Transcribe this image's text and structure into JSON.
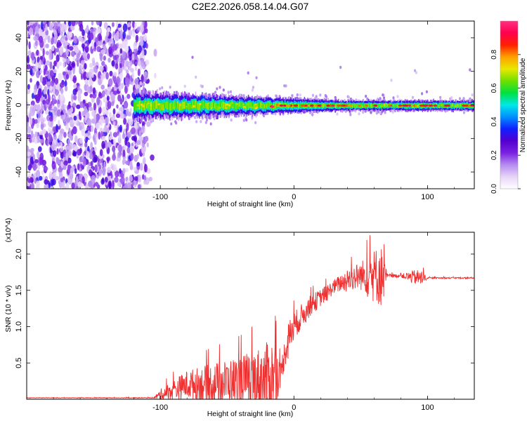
{
  "figure_title": "C2E2.2026.058.14.04.G07",
  "chart_data": [
    {
      "type": "heatmap",
      "title": "C2E2.2026.058.14.04.G07",
      "xlabel": "Height of straight line (km)",
      "ylabel": "Frequency (Hz)",
      "xlim": [
        -200,
        135
      ],
      "ylim": [
        -50,
        50
      ],
      "xticks": [
        -100,
        0,
        100
      ],
      "yticks": [
        -40,
        -20,
        0,
        20,
        40
      ],
      "xtick_labels": [
        "-100",
        "0",
        "100"
      ],
      "ytick_labels": [
        "-40",
        "-20",
        "0",
        "20",
        "40"
      ],
      "colorbar": {
        "label": "Normalized spectral amplitude",
        "range": [
          0.0,
          1.0
        ],
        "ticks": [
          0.0,
          0.2,
          0.4,
          0.6,
          0.8
        ],
        "tick_labels": [
          "0.0",
          "0.2",
          "0.4",
          "0.6",
          "0.8"
        ],
        "colors": [
          "#ffffff",
          "#e8d4f8",
          "#b48cf0",
          "#7a22e0",
          "#5200d0",
          "#1020ff",
          "#0090ff",
          "#00e8e8",
          "#00e040",
          "#6ee000",
          "#e8e800",
          "#ffa000",
          "#ff2000",
          "#ff0050",
          "#ff3080"
        ]
      },
      "regions": {
        "broadband_noise_x": [
          -200,
          -110
        ],
        "band_start_x": -120,
        "band_center_hz": 0,
        "band_halfwidth_hz": [
          8,
          3
        ]
      }
    },
    {
      "type": "line",
      "xlabel": "Height of straight line (km)",
      "ylabel": "SNR (10 * v/v)",
      "y_multiplier_label": "(x10^4)",
      "xlim": [
        -200,
        135
      ],
      "ylim": [
        0,
        2.3
      ],
      "xticks": [
        -100,
        0,
        100
      ],
      "yticks": [
        0.5,
        1.0,
        1.5,
        2.0
      ],
      "xtick_labels": [
        "-100",
        "0",
        "100"
      ],
      "ytick_labels": [
        "0.5",
        "1.0",
        "1.5",
        "2.0"
      ],
      "color": "#ee3030",
      "series": [
        {
          "name": "SNR",
          "envelope": {
            "x": [
              -200,
              -105,
              -100,
              -80,
              -60,
              -40,
              -25,
              -15,
              -10,
              -5,
              0,
              10,
              20,
              30,
              40,
              50,
              60,
              65,
              70,
              80,
              90,
              95,
              100,
              135
            ],
            "mean": [
              0.02,
              0.02,
              0.06,
              0.2,
              0.22,
              0.25,
              0.28,
              0.3,
              0.35,
              0.8,
              1.0,
              1.25,
              1.4,
              1.55,
              1.65,
              1.7,
              1.72,
              1.7,
              1.7,
              1.7,
              1.68,
              1.67,
              1.67,
              1.67
            ],
            "amp": [
              0.003,
              0.005,
              0.08,
              0.2,
              0.28,
              0.35,
              0.45,
              0.55,
              0.15,
              0.25,
              0.2,
              0.15,
              0.12,
              0.1,
              0.15,
              0.2,
              0.35,
              0.45,
              0.03,
              0.02,
              0.1,
              0.12,
              0.01,
              0.01
            ]
          }
        }
      ]
    }
  ]
}
